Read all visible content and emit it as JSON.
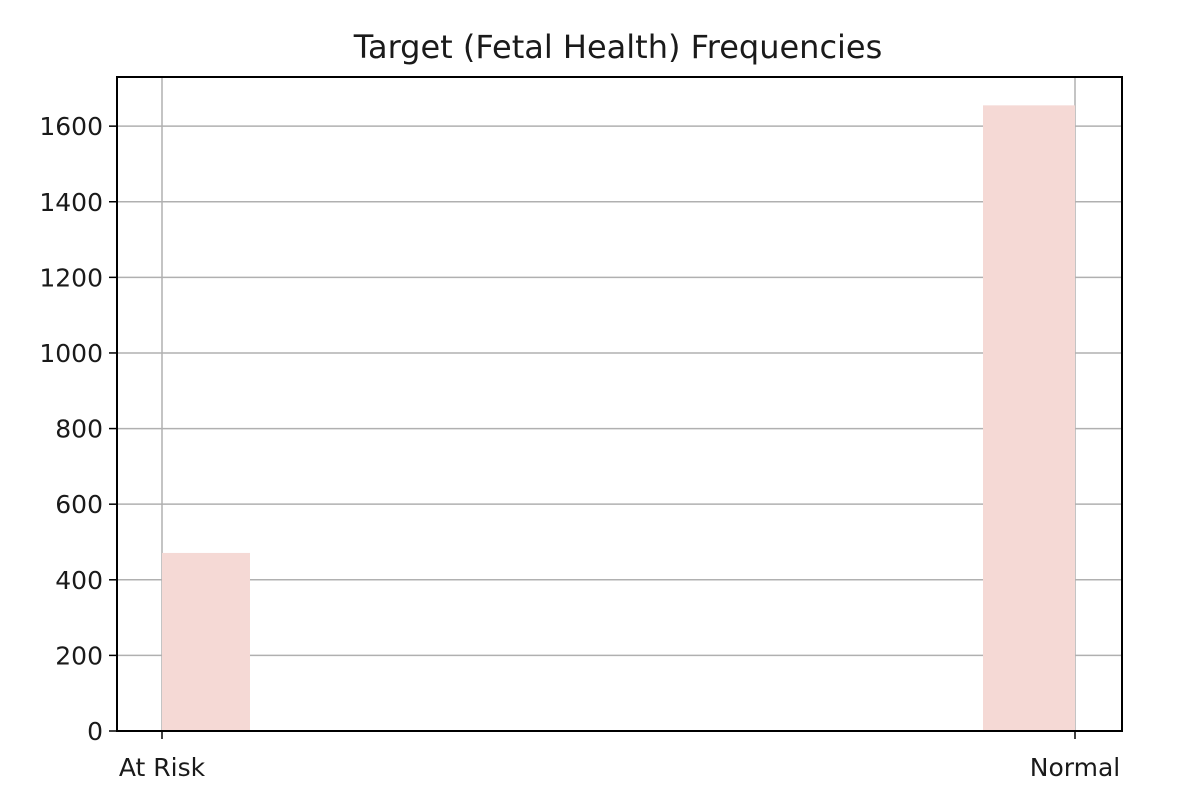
{
  "chart_data": {
    "type": "bar",
    "title": "Target (Fetal Health) Frequencies",
    "xlabel": "",
    "ylabel": "",
    "categories": [
      "At Risk",
      "Normal"
    ],
    "values": [
      471,
      1655
    ],
    "ylim": [
      0,
      1730
    ],
    "yticks": [
      0,
      200,
      400,
      600,
      800,
      1000,
      1200,
      1400,
      1600
    ],
    "grid": true,
    "legend": "none",
    "bar_color": "#f5d9d5"
  }
}
